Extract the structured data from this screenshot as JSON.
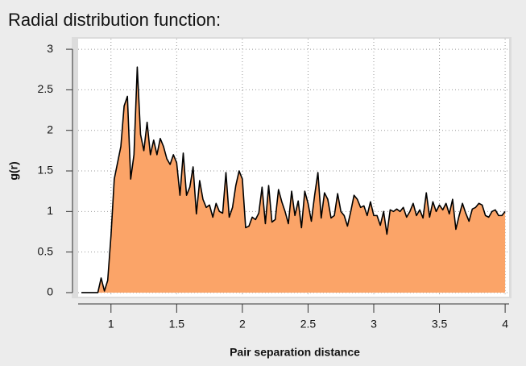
{
  "chart_data": {
    "type": "area",
    "title": "Radial distribution function:",
    "x_label": "Pair separation distance",
    "y_label": "g(r)",
    "x": [
      0.775,
      0.8,
      0.825,
      0.85,
      0.875,
      0.9,
      0.925,
      0.95,
      0.975,
      1.0,
      1.025,
      1.05,
      1.075,
      1.1,
      1.125,
      1.15,
      1.175,
      1.2,
      1.225,
      1.25,
      1.275,
      1.3,
      1.325,
      1.35,
      1.375,
      1.4,
      1.425,
      1.45,
      1.475,
      1.5,
      1.525,
      1.55,
      1.575,
      1.6,
      1.625,
      1.65,
      1.675,
      1.7,
      1.725,
      1.75,
      1.775,
      1.8,
      1.825,
      1.85,
      1.875,
      1.9,
      1.925,
      1.95,
      1.975,
      2.0,
      2.025,
      2.05,
      2.075,
      2.1,
      2.125,
      2.15,
      2.175,
      2.2,
      2.225,
      2.25,
      2.275,
      2.3,
      2.325,
      2.35,
      2.375,
      2.4,
      2.425,
      2.45,
      2.475,
      2.5,
      2.525,
      2.55,
      2.575,
      2.6,
      2.625,
      2.65,
      2.675,
      2.7,
      2.725,
      2.75,
      2.775,
      2.8,
      2.825,
      2.85,
      2.875,
      2.9,
      2.925,
      2.95,
      2.975,
      3.0,
      3.025,
      3.05,
      3.075,
      3.1,
      3.125,
      3.15,
      3.175,
      3.2,
      3.225,
      3.25,
      3.275,
      3.3,
      3.325,
      3.35,
      3.375,
      3.4,
      3.425,
      3.45,
      3.475,
      3.5,
      3.525,
      3.55,
      3.575,
      3.6,
      3.625,
      3.65,
      3.675,
      3.7,
      3.725,
      3.75,
      3.775,
      3.8,
      3.825,
      3.85,
      3.875,
      3.9,
      3.925,
      3.95,
      3.975,
      4.0
    ],
    "values": [
      0,
      0,
      0,
      0,
      0,
      0,
      0.18,
      0.02,
      0.15,
      0.7,
      1.4,
      1.6,
      1.8,
      2.3,
      2.42,
      1.4,
      1.7,
      2.78,
      1.95,
      1.75,
      2.1,
      1.7,
      1.88,
      1.7,
      1.9,
      1.8,
      1.65,
      1.58,
      1.7,
      1.6,
      1.2,
      1.72,
      1.2,
      1.3,
      1.55,
      0.97,
      1.38,
      1.15,
      1.05,
      1.08,
      0.93,
      1.1,
      1.0,
      0.98,
      1.48,
      0.93,
      1.05,
      1.32,
      1.5,
      1.4,
      0.8,
      0.82,
      0.93,
      0.9,
      0.98,
      1.3,
      0.85,
      1.32,
      0.87,
      0.9,
      1.27,
      1.12,
      1.0,
      0.85,
      1.25,
      0.95,
      1.13,
      0.8,
      1.25,
      1.1,
      0.88,
      1.2,
      1.48,
      0.92,
      1.23,
      1.15,
      0.92,
      0.95,
      1.22,
      1.0,
      0.95,
      0.82,
      1.0,
      1.2,
      1.15,
      1.05,
      1.07,
      0.95,
      1.12,
      0.95,
      0.95,
      0.83,
      1.0,
      0.72,
      1.02,
      1.0,
      1.03,
      1.0,
      1.05,
      0.93,
      1.0,
      1.1,
      0.95,
      1.02,
      0.92,
      1.23,
      0.93,
      1.12,
      1.0,
      1.08,
      1.02,
      1.1,
      0.97,
      1.15,
      0.78,
      0.95,
      1.1,
      0.98,
      0.88,
      1.03,
      1.05,
      1.1,
      1.08,
      0.95,
      0.93,
      1.0,
      1.02,
      0.95,
      0.95,
      1.0
    ],
    "color": "#fba468",
    "line_color": "#000000",
    "xlim": [
      0.75,
      4.03
    ],
    "ylim": [
      -0.05,
      3.13
    ],
    "xticks": [
      1,
      1.5,
      2,
      2.5,
      3,
      3.5,
      4
    ],
    "yticks": [
      0,
      0.5,
      1,
      1.5,
      2,
      2.5,
      3
    ],
    "grid": true
  }
}
